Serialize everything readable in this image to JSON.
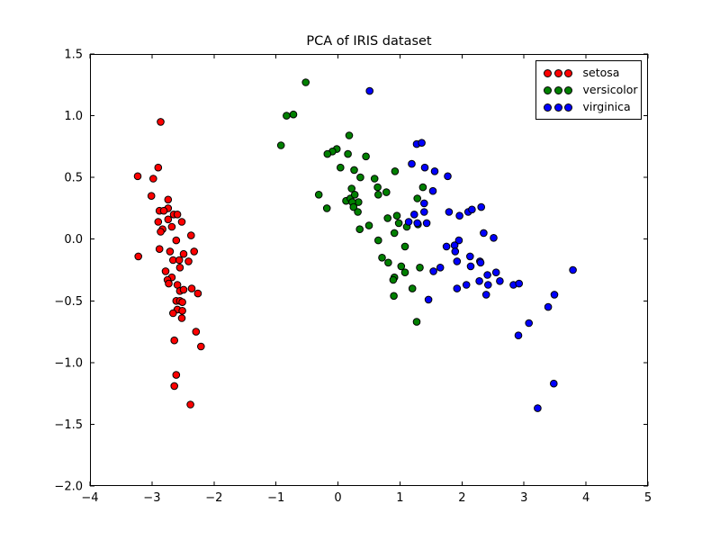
{
  "figure": {
    "background": "#ffffff"
  },
  "chart_data": {
    "type": "scatter",
    "title": "PCA of IRIS dataset",
    "xlabel": "",
    "ylabel": "",
    "xlim": [
      -4,
      5
    ],
    "ylim": [
      -2.0,
      1.5
    ],
    "grid": false,
    "legend_position": "upper right",
    "axes_color": "#000000",
    "marker_edge_color": "#000000",
    "x_tick_values": [
      -4,
      -3,
      -2,
      -1,
      0,
      1,
      2,
      3,
      4,
      5
    ],
    "x_tick_labels": [
      "−4",
      "−3",
      "−2",
      "−1",
      "0",
      "1",
      "2",
      "3",
      "4",
      "5"
    ],
    "y_tick_values": [
      -2.0,
      -1.5,
      -1.0,
      -0.5,
      0.0,
      0.5,
      1.0,
      1.5
    ],
    "y_tick_labels": [
      "−2.0",
      "−1.5",
      "−1.0",
      "−0.5",
      "0.0",
      "0.5",
      "1.0",
      "1.5"
    ],
    "series": [
      {
        "name": "setosa",
        "color": "#ff0000",
        "points": [
          [
            -2.86,
            0.95
          ],
          [
            -2.9,
            0.58
          ],
          [
            -3.23,
            0.51
          ],
          [
            -2.98,
            0.49
          ],
          [
            -3.01,
            0.35
          ],
          [
            -2.74,
            0.32
          ],
          [
            -2.74,
            0.25
          ],
          [
            -2.88,
            0.23
          ],
          [
            -2.81,
            0.23
          ],
          [
            -2.65,
            0.2
          ],
          [
            -2.59,
            0.2
          ],
          [
            -2.9,
            0.14
          ],
          [
            -2.74,
            0.16
          ],
          [
            -2.52,
            0.14
          ],
          [
            -2.83,
            0.08
          ],
          [
            -2.68,
            0.1
          ],
          [
            -2.86,
            0.06
          ],
          [
            -2.37,
            0.03
          ],
          [
            -2.61,
            -0.01
          ],
          [
            -2.88,
            -0.08
          ],
          [
            -3.22,
            -0.14
          ],
          [
            -2.71,
            -0.1
          ],
          [
            -2.49,
            -0.12
          ],
          [
            -2.32,
            -0.1
          ],
          [
            -2.66,
            -0.17
          ],
          [
            -2.56,
            -0.17
          ],
          [
            -2.41,
            -0.18
          ],
          [
            -2.55,
            -0.23
          ],
          [
            -2.78,
            -0.26
          ],
          [
            -2.68,
            -0.31
          ],
          [
            -2.75,
            -0.33
          ],
          [
            -2.73,
            -0.36
          ],
          [
            -2.59,
            -0.37
          ],
          [
            -2.55,
            -0.42
          ],
          [
            -2.49,
            -0.41
          ],
          [
            -2.36,
            -0.4
          ],
          [
            -2.26,
            -0.44
          ],
          [
            -2.61,
            -0.5
          ],
          [
            -2.55,
            -0.5
          ],
          [
            -2.51,
            -0.51
          ],
          [
            -2.59,
            -0.57
          ],
          [
            -2.51,
            -0.58
          ],
          [
            -2.66,
            -0.6
          ],
          [
            -2.52,
            -0.64
          ],
          [
            -2.29,
            -0.75
          ],
          [
            -2.64,
            -0.82
          ],
          [
            -2.21,
            -0.87
          ],
          [
            -2.61,
            -1.1
          ],
          [
            -2.64,
            -1.19
          ],
          [
            -2.38,
            -1.34
          ]
        ]
      },
      {
        "name": "versicolor",
        "color": "#008000",
        "points": [
          [
            -0.52,
            1.27
          ],
          [
            -0.83,
            1.0
          ],
          [
            -0.72,
            1.01
          ],
          [
            0.18,
            0.84
          ],
          [
            -0.92,
            0.76
          ],
          [
            -0.02,
            0.73
          ],
          [
            -0.09,
            0.71
          ],
          [
            -0.17,
            0.69
          ],
          [
            0.16,
            0.69
          ],
          [
            0.45,
            0.67
          ],
          [
            0.04,
            0.58
          ],
          [
            0.26,
            0.56
          ],
          [
            0.36,
            0.5
          ],
          [
            0.92,
            0.55
          ],
          [
            0.59,
            0.49
          ],
          [
            0.64,
            0.42
          ],
          [
            0.22,
            0.41
          ],
          [
            0.78,
            0.38
          ],
          [
            0.65,
            0.36
          ],
          [
            -0.31,
            0.36
          ],
          [
            0.13,
            0.31
          ],
          [
            0.2,
            0.33
          ],
          [
            0.27,
            0.36
          ],
          [
            0.33,
            0.3
          ],
          [
            0.23,
            0.3
          ],
          [
            -0.18,
            0.25
          ],
          [
            0.25,
            0.26
          ],
          [
            0.32,
            0.22
          ],
          [
            1.37,
            0.42
          ],
          [
            1.28,
            0.33
          ],
          [
            0.8,
            0.17
          ],
          [
            0.95,
            0.19
          ],
          [
            0.98,
            0.13
          ],
          [
            1.11,
            0.1
          ],
          [
            0.35,
            0.08
          ],
          [
            0.5,
            0.11
          ],
          [
            1.29,
            0.12
          ],
          [
            0.91,
            0.05
          ],
          [
            0.65,
            -0.01
          ],
          [
            1.08,
            -0.06
          ],
          [
            0.71,
            -0.15
          ],
          [
            0.81,
            -0.19
          ],
          [
            1.02,
            -0.22
          ],
          [
            1.08,
            -0.27
          ],
          [
            0.91,
            -0.31
          ],
          [
            0.89,
            -0.33
          ],
          [
            1.32,
            -0.23
          ],
          [
            1.2,
            -0.4
          ],
          [
            0.9,
            -0.46
          ],
          [
            1.27,
            -0.67
          ]
        ]
      },
      {
        "name": "virginica",
        "color": "#0000ff",
        "points": [
          [
            0.51,
            1.2
          ],
          [
            1.27,
            0.77
          ],
          [
            1.35,
            0.78
          ],
          [
            1.19,
            0.61
          ],
          [
            1.4,
            0.58
          ],
          [
            1.56,
            0.55
          ],
          [
            1.77,
            0.51
          ],
          [
            1.53,
            0.39
          ],
          [
            1.39,
            0.29
          ],
          [
            1.14,
            0.14
          ],
          [
            1.23,
            0.2
          ],
          [
            1.28,
            0.13
          ],
          [
            1.39,
            0.22
          ],
          [
            1.43,
            0.13
          ],
          [
            1.79,
            0.22
          ],
          [
            1.96,
            0.19
          ],
          [
            2.1,
            0.22
          ],
          [
            2.16,
            0.24
          ],
          [
            2.31,
            0.26
          ],
          [
            2.35,
            0.05
          ],
          [
            2.51,
            0.01
          ],
          [
            1.95,
            -0.01
          ],
          [
            1.75,
            -0.06
          ],
          [
            1.88,
            -0.05
          ],
          [
            1.89,
            -0.1
          ],
          [
            1.92,
            -0.18
          ],
          [
            1.54,
            -0.26
          ],
          [
            1.65,
            -0.23
          ],
          [
            1.92,
            -0.4
          ],
          [
            2.07,
            -0.37
          ],
          [
            1.46,
            -0.49
          ],
          [
            2.13,
            -0.14
          ],
          [
            2.29,
            -0.18
          ],
          [
            2.3,
            -0.19
          ],
          [
            2.14,
            -0.22
          ],
          [
            2.55,
            -0.27
          ],
          [
            2.41,
            -0.29
          ],
          [
            2.28,
            -0.34
          ],
          [
            2.42,
            -0.37
          ],
          [
            2.61,
            -0.34
          ],
          [
            2.83,
            -0.37
          ],
          [
            2.92,
            -0.36
          ],
          [
            2.39,
            -0.45
          ],
          [
            3.49,
            -0.45
          ],
          [
            3.39,
            -0.55
          ],
          [
            3.08,
            -0.68
          ],
          [
            2.91,
            -0.78
          ],
          [
            3.48,
            -1.17
          ],
          [
            3.22,
            -1.37
          ],
          [
            3.79,
            -0.25
          ]
        ]
      }
    ]
  }
}
